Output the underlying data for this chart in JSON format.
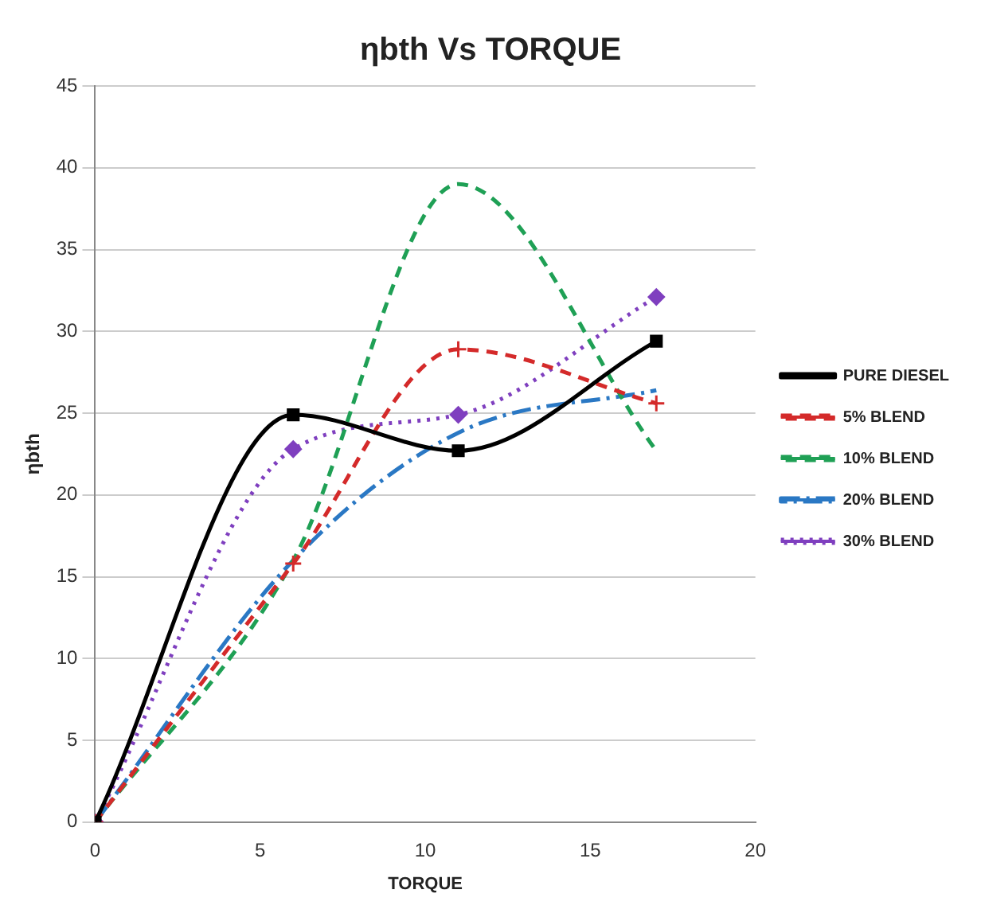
{
  "chart_data": {
    "type": "line",
    "title": "ηbth Vs TORQUE",
    "xlabel": "TORQUE",
    "ylabel": "ηbth",
    "x": [
      0,
      6,
      11,
      17
    ],
    "series": [
      {
        "name": "PURE DIESEL",
        "color": "#000000",
        "values": [
          0,
          24.9,
          22.7,
          29.4
        ],
        "marker": "square",
        "line_style": "solid"
      },
      {
        "name": "5% BLEND",
        "color": "#d42a2a",
        "values": [
          0,
          15.8,
          28.9,
          25.6
        ],
        "marker": "cross",
        "line_style": "dashed"
      },
      {
        "name": "10% BLEND",
        "color": "#1fa055",
        "values": [
          0,
          16,
          39,
          22.7
        ],
        "marker": "none",
        "line_style": "dashed"
      },
      {
        "name": "20% BLEND",
        "color": "#2a78c4",
        "values": [
          0,
          16,
          23.8,
          26.4
        ],
        "marker": "none",
        "line_style": "dashdot"
      },
      {
        "name": "30% BLEND",
        "color": "#7f3fbf",
        "values": [
          0,
          22.8,
          24.9,
          32.1
        ],
        "marker": "diamond",
        "line_style": "dotted"
      }
    ],
    "xlim": [
      0,
      20
    ],
    "xticks": [
      0,
      5,
      10,
      15,
      20
    ],
    "ylim": [
      0,
      45
    ],
    "yticks": [
      0,
      5,
      10,
      15,
      20,
      25,
      30,
      35,
      40,
      45
    ],
    "grid": "y",
    "legend": "right"
  }
}
